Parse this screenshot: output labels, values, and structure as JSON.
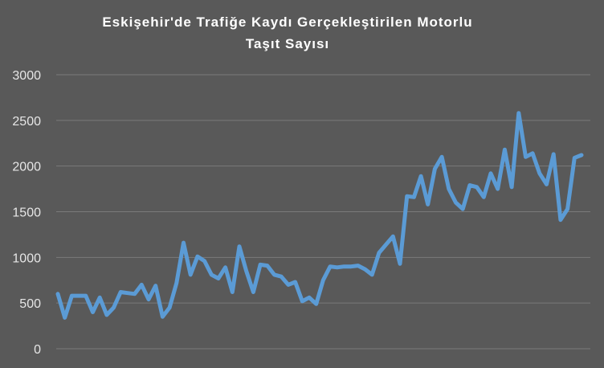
{
  "chart_data": {
    "type": "line",
    "title_lines": [
      "Eskişehir'de Trafiğe Kaydı Gerçekleştirilen Motorlu",
      "Taşıt Sayısı"
    ],
    "xlabel": "",
    "ylabel": "",
    "ylim": [
      0,
      3000
    ],
    "yticks": [
      0,
      500,
      1000,
      1500,
      2000,
      2500,
      3000
    ],
    "grid": true,
    "legend": "none",
    "colors": {
      "background": "#595959",
      "series": "#5B9BD5",
      "grid": "#7a7a7a",
      "text": "#e6e6e6"
    },
    "series": [
      {
        "values": [
          600,
          340,
          580,
          580,
          580,
          400,
          560,
          370,
          450,
          620,
          610,
          600,
          700,
          540,
          690,
          350,
          450,
          720,
          1160,
          810,
          1010,
          960,
          810,
          770,
          890,
          620,
          1120,
          850,
          620,
          920,
          910,
          810,
          790,
          700,
          730,
          520,
          560,
          490,
          750,
          900,
          890,
          900,
          900,
          910,
          870,
          810,
          1050,
          1140,
          1230,
          930,
          1670,
          1660,
          1890,
          1580,
          1970,
          2100,
          1750,
          1600,
          1530,
          1790,
          1770,
          1660,
          1920,
          1750,
          2180,
          1770,
          2580,
          2100,
          2140,
          1920,
          1800,
          2130,
          1410,
          1530,
          2090,
          2120
        ]
      }
    ]
  }
}
